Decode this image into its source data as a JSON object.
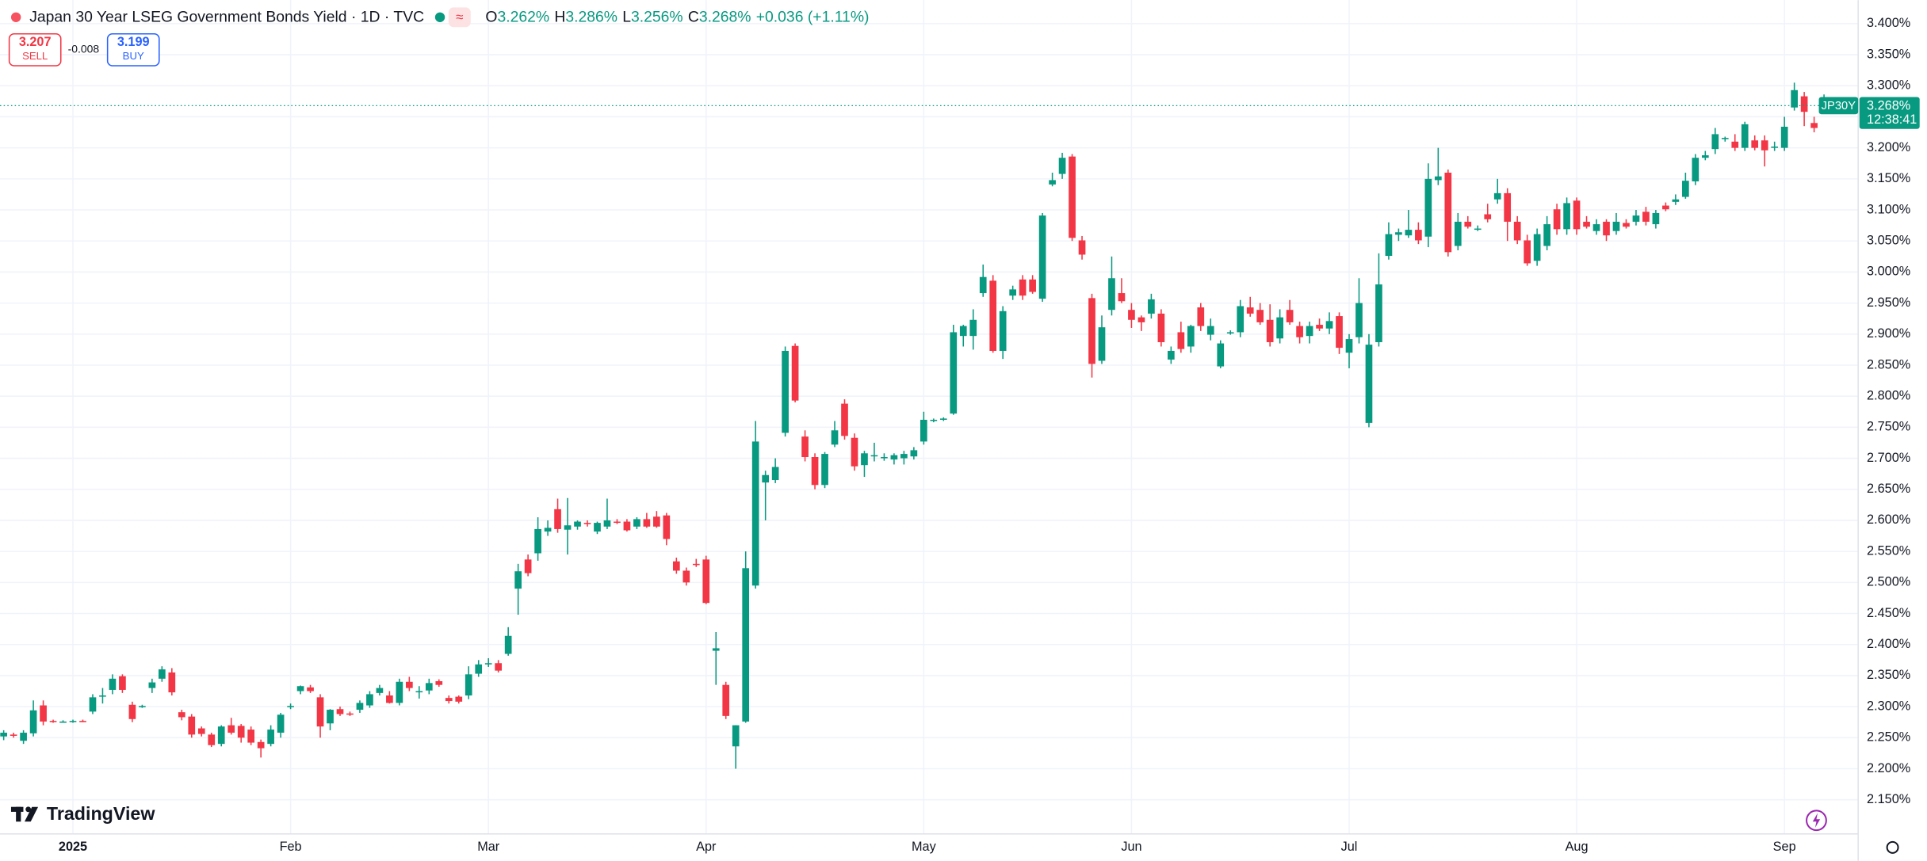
{
  "header": {
    "title": "Japan 30 Year LSEG Government Bonds Yield · 1D · TVC",
    "badge": "≈",
    "o": "O",
    "o_value": "3.262%",
    "h": "H",
    "h_value": "3.286%",
    "l": "L",
    "l_value": "3.256%",
    "c": "C",
    "c_value": "3.268%",
    "change": "+0.036 (+1.11%)"
  },
  "trade": {
    "sell_price": "3.207",
    "sell": "SELL",
    "spread": "-0.008",
    "buy_price": "3.199",
    "buy": "BUY"
  },
  "price_tag": {
    "symbol": "JP30Y",
    "value": "3.268%",
    "countdown": "12:38:41"
  },
  "logo": "TradingView",
  "chart_data": {
    "type": "candlestick",
    "up_color": "#089981",
    "down_color": "#f23645",
    "grid": true,
    "ylim": [
      2.095,
      3.438
    ],
    "yticks": [
      {
        "value": 3.4,
        "label": "3.400%"
      },
      {
        "value": 3.35,
        "label": "3.350%"
      },
      {
        "value": 3.3,
        "label": "3.300%"
      },
      {
        "value": 3.25,
        "label": "3.250%"
      },
      {
        "value": 3.2,
        "label": "3.200%"
      },
      {
        "value": 3.15,
        "label": "3.150%"
      },
      {
        "value": 3.1,
        "label": "3.100%"
      },
      {
        "value": 3.05,
        "label": "3.050%"
      },
      {
        "value": 3.0,
        "label": "3.000%"
      },
      {
        "value": 2.95,
        "label": "2.950%"
      },
      {
        "value": 2.9,
        "label": "2.900%"
      },
      {
        "value": 2.85,
        "label": "2.850%"
      },
      {
        "value": 2.8,
        "label": "2.800%"
      },
      {
        "value": 2.75,
        "label": "2.750%"
      },
      {
        "value": 2.7,
        "label": "2.700%"
      },
      {
        "value": 2.65,
        "label": "2.650%"
      },
      {
        "value": 2.6,
        "label": "2.600%"
      },
      {
        "value": 2.55,
        "label": "2.550%"
      },
      {
        "value": 2.5,
        "label": "2.500%"
      },
      {
        "value": 2.45,
        "label": "2.450%"
      },
      {
        "value": 2.4,
        "label": "2.400%"
      },
      {
        "value": 2.35,
        "label": "2.350%"
      },
      {
        "value": 2.3,
        "label": "2.300%"
      },
      {
        "value": 2.25,
        "label": "2.250%"
      },
      {
        "value": 2.2,
        "label": "2.200%"
      },
      {
        "value": 2.15,
        "label": "2.150%"
      }
    ],
    "xticks": [
      {
        "value": 7,
        "label": "2025"
      },
      {
        "value": 29,
        "label": "Feb"
      },
      {
        "value": 49,
        "label": "Mar"
      },
      {
        "value": 71,
        "label": "Apr"
      },
      {
        "value": 93,
        "label": "May"
      },
      {
        "value": 114,
        "label": "Jun"
      },
      {
        "value": 136,
        "label": "Jul"
      },
      {
        "value": 159,
        "label": "Aug"
      },
      {
        "value": 180,
        "label": "Sep"
      }
    ],
    "candles": [
      [
        2.252,
        2.262,
        2.246,
        2.258
      ],
      [
        2.255,
        2.258,
        2.25,
        2.253
      ],
      [
        2.245,
        2.262,
        2.24,
        2.258
      ],
      [
        2.257,
        2.31,
        2.252,
        2.294
      ],
      [
        2.302,
        2.31,
        2.27,
        2.276
      ],
      [
        2.277,
        2.279,
        2.274,
        2.276
      ],
      [
        2.276,
        2.278,
        2.274,
        2.276
      ],
      [
        2.276,
        2.279,
        2.274,
        2.277
      ],
      [
        2.277,
        2.279,
        2.275,
        2.276
      ],
      [
        2.292,
        2.32,
        2.288,
        2.315
      ],
      [
        2.316,
        2.33,
        2.305,
        2.318
      ],
      [
        2.327,
        2.352,
        2.32,
        2.345
      ],
      [
        2.349,
        2.352,
        2.322,
        2.327
      ],
      [
        2.303,
        2.308,
        2.275,
        2.28
      ],
      [
        2.3,
        2.303,
        2.298,
        2.301
      ],
      [
        2.33,
        2.345,
        2.322,
        2.339
      ],
      [
        2.345,
        2.365,
        2.34,
        2.36
      ],
      [
        2.355,
        2.362,
        2.318,
        2.323
      ],
      [
        2.291,
        2.295,
        2.278,
        2.283
      ],
      [
        2.284,
        2.288,
        2.25,
        2.255
      ],
      [
        2.265,
        2.268,
        2.252,
        2.256
      ],
      [
        2.255,
        2.258,
        2.235,
        2.238
      ],
      [
        2.24,
        2.27,
        2.236,
        2.268
      ],
      [
        2.27,
        2.282,
        2.255,
        2.258
      ],
      [
        2.269,
        2.272,
        2.242,
        2.25
      ],
      [
        2.263,
        2.268,
        2.238,
        2.242
      ],
      [
        2.243,
        2.247,
        2.218,
        2.233
      ],
      [
        2.24,
        2.27,
        2.236,
        2.263
      ],
      [
        2.258,
        2.29,
        2.25,
        2.287
      ],
      [
        2.3,
        2.305,
        2.296,
        2.301
      ],
      [
        2.325,
        2.334,
        2.32,
        2.333
      ],
      [
        2.331,
        2.335,
        2.322,
        2.325
      ],
      [
        2.315,
        2.32,
        2.25,
        2.268
      ],
      [
        2.273,
        2.296,
        2.262,
        2.295
      ],
      [
        2.296,
        2.3,
        2.285,
        2.288
      ],
      [
        2.289,
        2.292,
        2.285,
        2.288
      ],
      [
        2.295,
        2.31,
        2.29,
        2.306
      ],
      [
        2.302,
        2.325,
        2.298,
        2.32
      ],
      [
        2.322,
        2.335,
        2.318,
        2.33
      ],
      [
        2.318,
        2.325,
        2.305,
        2.306
      ],
      [
        2.306,
        2.345,
        2.302,
        2.34
      ],
      [
        2.34,
        2.348,
        2.325,
        2.33
      ],
      [
        2.324,
        2.333,
        2.313,
        2.325
      ],
      [
        2.326,
        2.345,
        2.32,
        2.338
      ],
      [
        2.341,
        2.344,
        2.332,
        2.335
      ],
      [
        2.314,
        2.318,
        2.305,
        2.309
      ],
      [
        2.316,
        2.318,
        2.305,
        2.308
      ],
      [
        2.318,
        2.365,
        2.312,
        2.352
      ],
      [
        2.353,
        2.375,
        2.348,
        2.368
      ],
      [
        2.369,
        2.378,
        2.364,
        2.37
      ],
      [
        2.37,
        2.375,
        2.355,
        2.358
      ],
      [
        2.385,
        2.428,
        2.382,
        2.414
      ],
      [
        2.49,
        2.53,
        2.448,
        2.518
      ],
      [
        2.537,
        2.545,
        2.51,
        2.515
      ],
      [
        2.547,
        2.605,
        2.535,
        2.586
      ],
      [
        2.582,
        2.6,
        2.575,
        2.588
      ],
      [
        2.618,
        2.635,
        2.58,
        2.586
      ],
      [
        2.585,
        2.636,
        2.545,
        2.592
      ],
      [
        2.59,
        2.6,
        2.585,
        2.598
      ],
      [
        2.596,
        2.6,
        2.59,
        2.594
      ],
      [
        2.582,
        2.598,
        2.578,
        2.596
      ],
      [
        2.59,
        2.635,
        2.586,
        2.6
      ],
      [
        2.598,
        2.602,
        2.594,
        2.597
      ],
      [
        2.598,
        2.602,
        2.582,
        2.584
      ],
      [
        2.59,
        2.605,
        2.586,
        2.602
      ],
      [
        2.602,
        2.612,
        2.588,
        2.59
      ],
      [
        2.606,
        2.615,
        2.588,
        2.59
      ],
      [
        2.608,
        2.612,
        2.56,
        2.57
      ],
      [
        2.534,
        2.54,
        2.514,
        2.519
      ],
      [
        2.519,
        2.524,
        2.495,
        2.5
      ],
      [
        2.53,
        2.538,
        2.525,
        2.528
      ],
      [
        2.537,
        2.543,
        2.465,
        2.467
      ],
      [
        2.39,
        2.42,
        2.335,
        2.394
      ],
      [
        2.335,
        2.34,
        2.28,
        2.285
      ],
      [
        2.236,
        2.27,
        2.2,
        2.27
      ],
      [
        2.276,
        2.55,
        2.274,
        2.523
      ],
      [
        2.495,
        2.76,
        2.49,
        2.727
      ],
      [
        2.661,
        2.68,
        2.6,
        2.673
      ],
      [
        2.665,
        2.7,
        2.66,
        2.686
      ],
      [
        2.741,
        2.88,
        2.735,
        2.873
      ],
      [
        2.881,
        2.885,
        2.79,
        2.793
      ],
      [
        2.735,
        2.745,
        2.695,
        2.702
      ],
      [
        2.702,
        2.708,
        2.65,
        2.657
      ],
      [
        2.657,
        2.71,
        2.652,
        2.707
      ],
      [
        2.722,
        2.76,
        2.718,
        2.745
      ],
      [
        2.788,
        2.795,
        2.73,
        2.736
      ],
      [
        2.733,
        2.74,
        2.68,
        2.687
      ],
      [
        2.689,
        2.712,
        2.67,
        2.708
      ],
      [
        2.704,
        2.725,
        2.695,
        2.705
      ],
      [
        2.701,
        2.708,
        2.696,
        2.702
      ],
      [
        2.698,
        2.708,
        2.69,
        2.705
      ],
      [
        2.7,
        2.712,
        2.69,
        2.707
      ],
      [
        2.703,
        2.718,
        2.698,
        2.713
      ],
      [
        2.727,
        2.775,
        2.722,
        2.762
      ],
      [
        2.76,
        2.764,
        2.758,
        2.762
      ],
      [
        2.762,
        2.766,
        2.76,
        2.764
      ],
      [
        2.772,
        2.915,
        2.77,
        2.903
      ],
      [
        2.897,
        2.915,
        2.88,
        2.913
      ],
      [
        2.897,
        2.94,
        2.875,
        2.923
      ],
      [
        2.966,
        3.012,
        2.96,
        2.992
      ],
      [
        2.986,
        2.995,
        2.87,
        2.873
      ],
      [
        2.873,
        2.945,
        2.86,
        2.937
      ],
      [
        2.962,
        2.978,
        2.955,
        2.972
      ],
      [
        2.988,
        2.995,
        2.955,
        2.962
      ],
      [
        2.988,
        2.995,
        2.965,
        2.968
      ],
      [
        2.957,
        3.095,
        2.952,
        3.091
      ],
      [
        3.141,
        3.16,
        3.138,
        3.148
      ],
      [
        3.158,
        3.192,
        3.15,
        3.184
      ],
      [
        3.186,
        3.19,
        3.05,
        3.055
      ],
      [
        3.051,
        3.058,
        3.02,
        3.028
      ],
      [
        2.958,
        2.965,
        2.83,
        2.852
      ],
      [
        2.857,
        2.93,
        2.852,
        2.911
      ],
      [
        2.939,
        3.025,
        2.93,
        2.99
      ],
      [
        2.966,
        2.99,
        2.95,
        2.953
      ],
      [
        2.939,
        2.95,
        2.91,
        2.923
      ],
      [
        2.927,
        2.93,
        2.905,
        2.919
      ],
      [
        2.933,
        2.965,
        2.925,
        2.956
      ],
      [
        2.933,
        2.94,
        2.88,
        2.887
      ],
      [
        2.859,
        2.88,
        2.852,
        2.873
      ],
      [
        2.903,
        2.92,
        2.87,
        2.876
      ],
      [
        2.88,
        2.915,
        2.87,
        2.913
      ],
      [
        2.943,
        2.95,
        2.905,
        2.913
      ],
      [
        2.899,
        2.925,
        2.89,
        2.913
      ],
      [
        2.848,
        2.89,
        2.845,
        2.885
      ],
      [
        2.902,
        2.906,
        2.899,
        2.903
      ],
      [
        2.903,
        2.955,
        2.895,
        2.945
      ],
      [
        2.943,
        2.96,
        2.928,
        2.933
      ],
      [
        2.939,
        2.95,
        2.915,
        2.919
      ],
      [
        2.923,
        2.948,
        2.88,
        2.887
      ],
      [
        2.893,
        2.94,
        2.885,
        2.927
      ],
      [
        2.939,
        2.955,
        2.915,
        2.919
      ],
      [
        2.913,
        2.92,
        2.885,
        2.895
      ],
      [
        2.897,
        2.92,
        2.885,
        2.913
      ],
      [
        2.915,
        2.925,
        2.905,
        2.909
      ],
      [
        2.909,
        2.935,
        2.9,
        2.921
      ],
      [
        2.929,
        2.935,
        2.868,
        2.878
      ],
      [
        2.87,
        2.9,
        2.845,
        2.892
      ],
      [
        2.895,
        2.99,
        2.885,
        2.95
      ],
      [
        2.757,
        2.9,
        2.75,
        2.883
      ],
      [
        2.887,
        3.03,
        2.88,
        2.98
      ],
      [
        3.026,
        3.08,
        3.02,
        3.061
      ],
      [
        3.06,
        3.07,
        3.05,
        3.064
      ],
      [
        3.059,
        3.1,
        3.055,
        3.068
      ],
      [
        3.068,
        3.08,
        3.045,
        3.051
      ],
      [
        3.057,
        3.175,
        3.04,
        3.15
      ],
      [
        3.148,
        3.2,
        3.14,
        3.154
      ],
      [
        3.16,
        3.165,
        3.025,
        3.032
      ],
      [
        3.042,
        3.095,
        3.035,
        3.081
      ],
      [
        3.081,
        3.09,
        3.07,
        3.073
      ],
      [
        3.07,
        3.075,
        3.066,
        3.07
      ],
      [
        3.093,
        3.11,
        3.08,
        3.085
      ],
      [
        3.117,
        3.15,
        3.11,
        3.127
      ],
      [
        3.127,
        3.135,
        3.05,
        3.081
      ],
      [
        3.081,
        3.09,
        3.045,
        3.051
      ],
      [
        3.051,
        3.06,
        3.01,
        3.014
      ],
      [
        3.018,
        3.07,
        3.01,
        3.061
      ],
      [
        3.042,
        3.09,
        3.035,
        3.077
      ],
      [
        3.101,
        3.11,
        3.06,
        3.069
      ],
      [
        3.069,
        3.12,
        3.06,
        3.111
      ],
      [
        3.115,
        3.12,
        3.06,
        3.069
      ],
      [
        3.081,
        3.09,
        3.07,
        3.073
      ],
      [
        3.066,
        3.085,
        3.06,
        3.077
      ],
      [
        3.081,
        3.085,
        3.05,
        3.059
      ],
      [
        3.066,
        3.095,
        3.06,
        3.081
      ],
      [
        3.079,
        3.085,
        3.07,
        3.073
      ],
      [
        3.081,
        3.1,
        3.075,
        3.091
      ],
      [
        3.097,
        3.105,
        3.075,
        3.081
      ],
      [
        3.077,
        3.1,
        3.07,
        3.095
      ],
      [
        3.107,
        3.112,
        3.098,
        3.101
      ],
      [
        3.113,
        3.125,
        3.108,
        3.117
      ],
      [
        3.121,
        3.16,
        3.118,
        3.147
      ],
      [
        3.146,
        3.19,
        3.14,
        3.184
      ],
      [
        3.184,
        3.195,
        3.18,
        3.188
      ],
      [
        3.198,
        3.232,
        3.19,
        3.222
      ],
      [
        3.214,
        3.218,
        3.21,
        3.216
      ],
      [
        3.21,
        3.222,
        3.195,
        3.2
      ],
      [
        3.2,
        3.242,
        3.195,
        3.238
      ],
      [
        3.212,
        3.22,
        3.196,
        3.2
      ],
      [
        3.212,
        3.22,
        3.17,
        3.196
      ],
      [
        3.2,
        3.21,
        3.195,
        3.202
      ],
      [
        3.2,
        3.25,
        3.195,
        3.234
      ],
      [
        3.265,
        3.305,
        3.26,
        3.293
      ],
      [
        3.283,
        3.29,
        3.235,
        3.258
      ],
      [
        3.24,
        3.25,
        3.225,
        3.232
      ],
      [
        3.262,
        3.286,
        3.256,
        3.268
      ]
    ]
  }
}
